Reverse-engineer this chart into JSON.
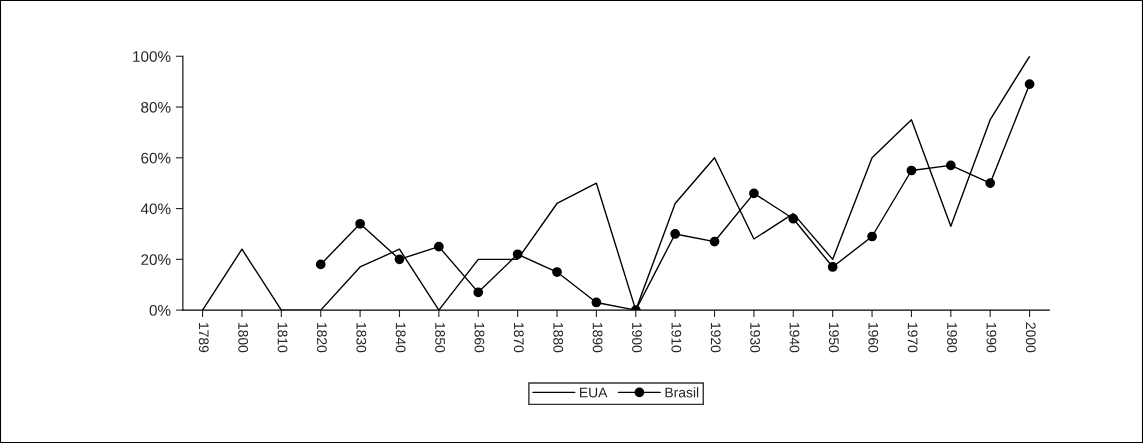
{
  "chart_data": {
    "type": "line",
    "categories": [
      "1789",
      "1800",
      "1810",
      "1820",
      "1830",
      "1840",
      "1850",
      "1860",
      "1870",
      "1880",
      "1890",
      "1900",
      "1910",
      "1920",
      "1930",
      "1940",
      "1950",
      "1960",
      "1970",
      "1980",
      "1990",
      "2000"
    ],
    "series": [
      {
        "name": "EUA",
        "color": "#000000",
        "marker": "none",
        "values": [
          0,
          24,
          0,
          0,
          17,
          24,
          0,
          20,
          20,
          42,
          50,
          0,
          42,
          60,
          28,
          38,
          20,
          60,
          75,
          33,
          75,
          100
        ]
      },
      {
        "name": "Brasil",
        "color": "#000000",
        "marker": "circle",
        "values": [
          null,
          null,
          null,
          18,
          34,
          20,
          25,
          7,
          22,
          15,
          3,
          0,
          30,
          27,
          46,
          36,
          17,
          29,
          55,
          57,
          50,
          89
        ]
      }
    ],
    "ylim": [
      0,
      100
    ],
    "yticks": [
      {
        "value": 0,
        "label": "0%"
      },
      {
        "value": 20,
        "label": "20%"
      },
      {
        "value": 40,
        "label": "40%"
      },
      {
        "value": 60,
        "label": "60%"
      },
      {
        "value": 80,
        "label": "80%"
      },
      {
        "value": 100,
        "label": "100%"
      }
    ],
    "grid": false,
    "legend": "bottom",
    "line_style": "solid"
  }
}
